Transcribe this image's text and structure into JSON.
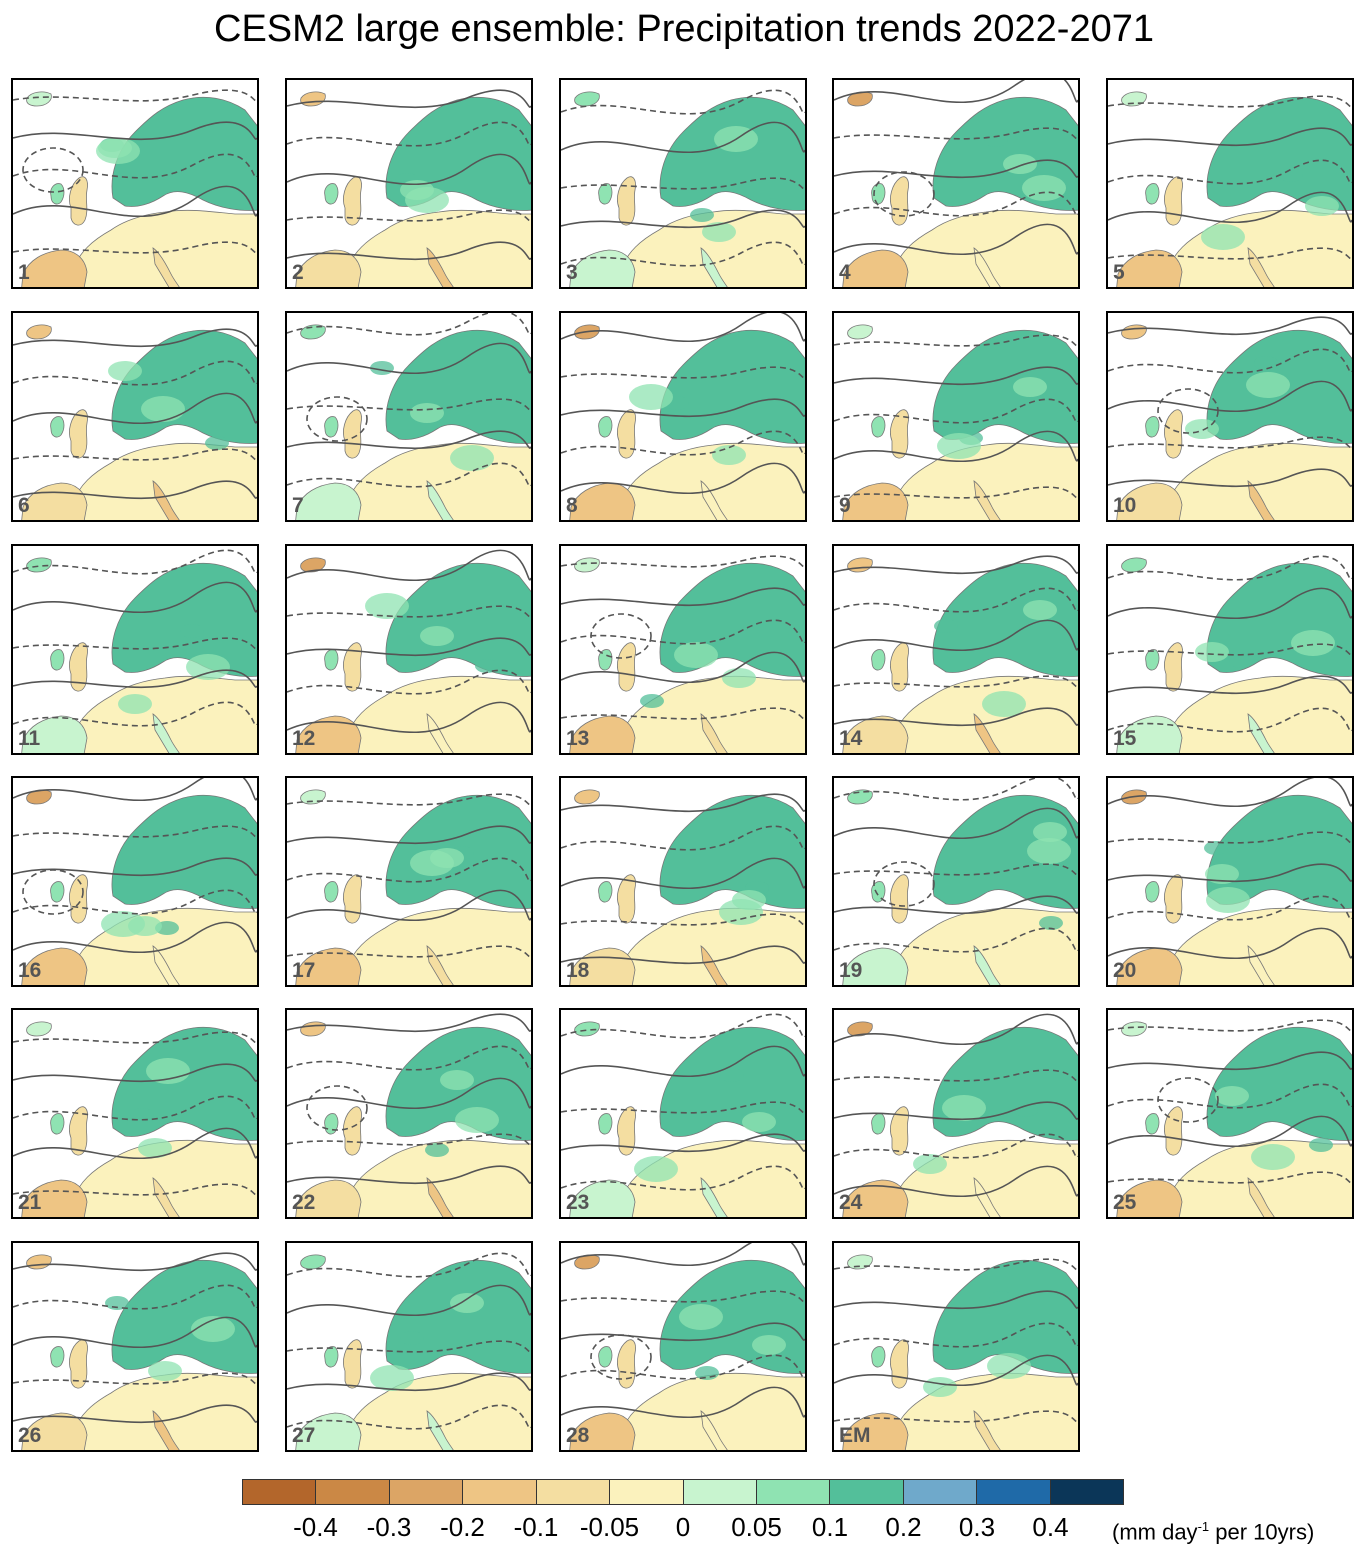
{
  "title": "CESM2 large ensemble: Precipitation trends 2022-2071",
  "panels": [
    {
      "label": "1"
    },
    {
      "label": "2"
    },
    {
      "label": "3"
    },
    {
      "label": "4"
    },
    {
      "label": "5"
    },
    {
      "label": "6"
    },
    {
      "label": "7"
    },
    {
      "label": "8"
    },
    {
      "label": "9"
    },
    {
      "label": "10"
    },
    {
      "label": "11"
    },
    {
      "label": "12"
    },
    {
      "label": "13"
    },
    {
      "label": "14"
    },
    {
      "label": "15"
    },
    {
      "label": "16"
    },
    {
      "label": "17"
    },
    {
      "label": "18"
    },
    {
      "label": "19"
    },
    {
      "label": "20"
    },
    {
      "label": "21"
    },
    {
      "label": "22"
    },
    {
      "label": "23"
    },
    {
      "label": "24"
    },
    {
      "label": "25"
    },
    {
      "label": "26"
    },
    {
      "label": "27"
    },
    {
      "label": "28"
    },
    {
      "label": "EM"
    }
  ],
  "colorbar": {
    "colors": [
      "#b3662b",
      "#cb8845",
      "#dca565",
      "#eec584",
      "#f4dea1",
      "#fbf2bd",
      "#c8f4cf",
      "#8fe3b2",
      "#53bf9a",
      "#6fa9cb",
      "#1f6aa8",
      "#0b3658"
    ],
    "ticks": [
      "-0.4",
      "-0.3",
      "-0.2",
      "-0.1",
      "-0.05",
      "0",
      "0.05",
      "0.1",
      "0.2",
      "0.3",
      "0.4"
    ],
    "units_prefix": "(mm day",
    "units_exponent": "-1",
    "units_suffix": " per 10yrs)"
  }
}
